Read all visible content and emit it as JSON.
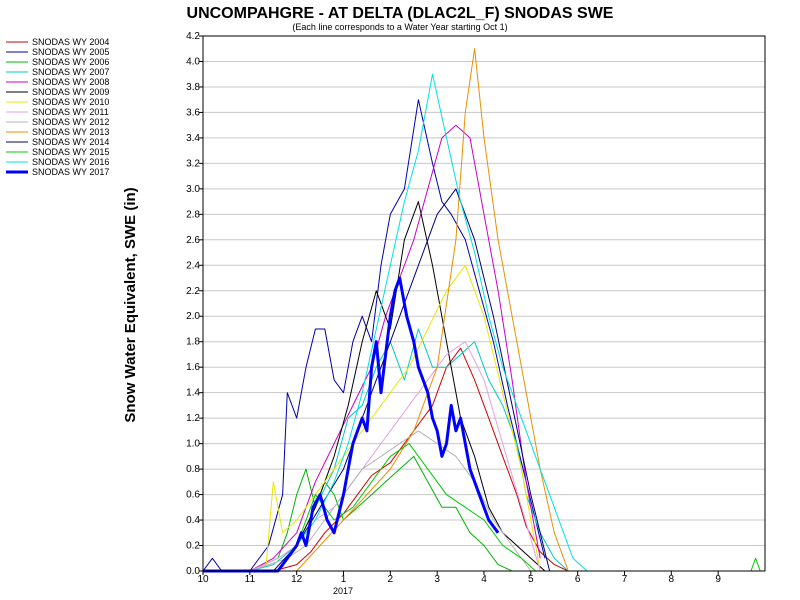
{
  "chart_data": {
    "type": "line",
    "title": "UNCOMPAHGRE - AT DELTA (DLAC2L_F) SNODAS SWE",
    "subtitle": "(Each line corresponds to a Water Year starting Oct 1)",
    "ylabel": "Snow Water Equivalent, SWE (in)",
    "xlabel": "",
    "x_ticks": [
      "10",
      "11",
      "12",
      "1",
      "2",
      "3",
      "4",
      "5",
      "6",
      "7",
      "8",
      "9"
    ],
    "x_year_label": "2017",
    "xlim": [
      0,
      12
    ],
    "ylim": [
      0,
      4.2
    ],
    "y_ticks": [
      0.0,
      0.2,
      0.4,
      0.6,
      0.8,
      1.0,
      1.2,
      1.4,
      1.6,
      1.8,
      2.0,
      2.2,
      2.4,
      2.6,
      2.8,
      3.0,
      3.2,
      3.4,
      3.6,
      3.8,
      4.0,
      4.2
    ],
    "grid": true,
    "legend_position": "left",
    "series": [
      {
        "name": "SNODAS WY 2004",
        "color": "#d00000",
        "width": 1,
        "x": [
          0,
          0.5,
          1,
          1.5,
          2,
          2.3,
          2.6,
          3,
          3.3,
          3.6,
          4,
          4.3,
          4.6,
          4.9,
          5.2,
          5.5,
          5.8,
          6.1,
          6.4,
          6.7,
          6.9,
          7.2,
          7.5,
          7.8
        ],
        "y": [
          0,
          0,
          0,
          0,
          0.05,
          0.15,
          0.3,
          0.45,
          0.6,
          0.75,
          0.85,
          1.0,
          1.15,
          1.3,
          1.6,
          1.75,
          1.5,
          1.2,
          0.9,
          0.6,
          0.35,
          0.15,
          0.05,
          0
        ]
      },
      {
        "name": "SNODAS WY 2005",
        "color": "#0000b4",
        "width": 1,
        "x": [
          0,
          0.2,
          0.4,
          1,
          1.4,
          1.7,
          1.8,
          2,
          2.2,
          2.4,
          2.6,
          2.8,
          3,
          3.2,
          3.4,
          3.6,
          3.8,
          4,
          4.3,
          4.6,
          4.9,
          5.1,
          5.3,
          5.6,
          5.9,
          6.2,
          6.5,
          6.7,
          6.9,
          7.1,
          7.3
        ],
        "y": [
          0,
          0.1,
          0,
          0,
          0.2,
          0.6,
          1.4,
          1.2,
          1.6,
          1.9,
          1.9,
          1.5,
          1.4,
          1.8,
          2.0,
          1.8,
          2.4,
          2.8,
          3.0,
          3.7,
          3.2,
          2.9,
          2.8,
          2.6,
          2.2,
          1.8,
          1.3,
          1.0,
          0.7,
          0.4,
          0.1
        ]
      },
      {
        "name": "SNODAS WY 2006",
        "color": "#00b400",
        "width": 1,
        "x": [
          0,
          1,
          1.6,
          1.8,
          2.0,
          2.2,
          2.4,
          2.6,
          2.8,
          3.0,
          3.3,
          3.6,
          3.9,
          4.2,
          4.5,
          4.8,
          5.1,
          5.4,
          5.7,
          6.0,
          6.3,
          6.6
        ],
        "y": [
          0,
          0,
          0.1,
          0.3,
          0.6,
          0.8,
          0.5,
          0.7,
          0.6,
          0.4,
          0.5,
          0.6,
          0.7,
          0.8,
          0.9,
          0.7,
          0.5,
          0.5,
          0.3,
          0.2,
          0.05,
          0
        ]
      },
      {
        "name": "SNODAS WY 2007",
        "color": "#00c8c8",
        "width": 1,
        "x": [
          0,
          1,
          1.5,
          2,
          2.4,
          2.8,
          3.1,
          3.4,
          3.7,
          4.0,
          4.3,
          4.6,
          4.9,
          5.2,
          5.5,
          5.8,
          6.1,
          6.4,
          6.7,
          6.9,
          7.2,
          7.5,
          7.8
        ],
        "y": [
          0,
          0,
          0.05,
          0.2,
          0.5,
          0.8,
          1.2,
          1.3,
          1.6,
          1.8,
          1.5,
          1.9,
          1.6,
          1.6,
          1.7,
          1.8,
          1.5,
          1.3,
          1.0,
          0.6,
          0.3,
          0.1,
          0
        ]
      },
      {
        "name": "SNODAS WY 2008",
        "color": "#c800c8",
        "width": 1,
        "x": [
          0,
          1,
          1.5,
          2,
          2.4,
          2.8,
          3.2,
          3.6,
          3.9,
          4.2,
          4.5,
          4.8,
          5.1,
          5.4,
          5.7,
          6.0,
          6.3,
          6.6,
          6.9,
          7.2
        ],
        "y": [
          0,
          0,
          0.1,
          0.3,
          0.7,
          1.0,
          1.3,
          1.6,
          2.0,
          2.3,
          2.6,
          3.0,
          3.4,
          3.5,
          3.4,
          2.8,
          2.2,
          1.5,
          0.7,
          0.1
        ]
      },
      {
        "name": "SNODAS WY 2009",
        "color": "#000000",
        "width": 1,
        "x": [
          0,
          1.6,
          2,
          2.4,
          2.8,
          3.1,
          3.4,
          3.7,
          4.0,
          4.3,
          4.6,
          4.9,
          5.2,
          5.5,
          5.8,
          6.1,
          6.4,
          6.7,
          7.0,
          7.3
        ],
        "y": [
          0,
          0,
          0.2,
          0.5,
          0.9,
          1.3,
          1.8,
          2.2,
          1.9,
          2.6,
          2.9,
          2.4,
          1.8,
          1.2,
          0.9,
          0.5,
          0.3,
          0.2,
          0.1,
          0
        ]
      },
      {
        "name": "SNODAS WY 2010",
        "color": "#e8e800",
        "width": 1,
        "x": [
          0,
          1,
          1.35,
          1.5,
          1.7,
          2,
          2.4,
          2.8,
          3.2,
          3.6,
          4.0,
          4.4,
          4.8,
          5.2,
          5.6,
          6.0,
          6.4,
          6.8,
          7.2
        ],
        "y": [
          0,
          0,
          0.05,
          0.7,
          0.3,
          0.4,
          0.6,
          0.8,
          1.0,
          1.2,
          1.4,
          1.6,
          1.9,
          2.2,
          2.4,
          2.0,
          1.4,
          0.8,
          0
        ]
      },
      {
        "name": "SNODAS WY 2011",
        "color": "#e4a0e4",
        "width": 1,
        "x": [
          0,
          1,
          1.6,
          2,
          2.4,
          2.8,
          3.2,
          3.6,
          4.0,
          4.4,
          4.8,
          5.2,
          5.6,
          6.0,
          6.4,
          6.8,
          7.2
        ],
        "y": [
          0,
          0,
          0.1,
          0.2,
          0.4,
          0.5,
          0.7,
          0.9,
          1.1,
          1.3,
          1.5,
          1.7,
          1.8,
          1.5,
          1.0,
          0.5,
          0
        ]
      },
      {
        "name": "SNODAS WY 2012",
        "color": "#b4b4b4",
        "width": 1,
        "x": [
          0,
          1,
          1.8,
          2.2,
          2.6,
          3.0,
          3.4,
          3.8,
          4.2,
          4.6,
          5.0,
          5.4,
          5.8,
          6.2,
          6.6,
          7.0
        ],
        "y": [
          0,
          0,
          0.1,
          0.2,
          0.4,
          0.6,
          0.8,
          0.9,
          1.0,
          1.1,
          1.0,
          0.9,
          0.7,
          0.4,
          0.2,
          0
        ]
      },
      {
        "name": "SNODAS WY 2013",
        "color": "#e89000",
        "width": 1,
        "x": [
          0,
          1,
          2,
          2.5,
          3.0,
          3.5,
          4.0,
          4.5,
          5.0,
          5.4,
          5.6,
          5.8,
          6.0,
          6.3,
          6.6,
          6.9,
          7.2,
          7.5,
          7.8
        ],
        "y": [
          0,
          0,
          0,
          0.2,
          0.4,
          0.6,
          0.8,
          1.1,
          1.6,
          2.6,
          3.6,
          4.1,
          3.4,
          2.6,
          2.0,
          1.4,
          0.8,
          0.3,
          0
        ]
      },
      {
        "name": "SNODAS WY 2014",
        "color": "#000078",
        "width": 1,
        "x": [
          0,
          1.5,
          2,
          2.5,
          3.0,
          3.4,
          3.8,
          4.2,
          4.6,
          5.0,
          5.4,
          5.8,
          6.2,
          6.6,
          7.0,
          7.4
        ],
        "y": [
          0,
          0,
          0.2,
          0.5,
          0.8,
          1.2,
          1.6,
          2.0,
          2.4,
          2.8,
          3.0,
          2.6,
          2.0,
          1.3,
          0.6,
          0
        ]
      },
      {
        "name": "SNODAS WY 2015",
        "color": "#00c800",
        "width": 1,
        "x": [
          0,
          1.6,
          2,
          2.4,
          2.8,
          3.2,
          3.6,
          4.0,
          4.4,
          4.8,
          5.2,
          5.6,
          6.0,
          6.4,
          6.8,
          7.1,
          11.7,
          11.8,
          11.9
        ],
        "y": [
          0,
          0,
          0.2,
          0.6,
          0.4,
          0.5,
          0.7,
          0.9,
          1.0,
          0.8,
          0.6,
          0.5,
          0.4,
          0.2,
          0.1,
          0,
          0,
          0.1,
          0
        ]
      },
      {
        "name": "SNODAS WY 2016",
        "color": "#00e0e0",
        "width": 1,
        "x": [
          0,
          1.6,
          2,
          2.4,
          2.8,
          3.1,
          3.4,
          3.7,
          4.0,
          4.3,
          4.6,
          4.9,
          5.2,
          5.5,
          5.8,
          6.1,
          6.4,
          6.7,
          7.0,
          7.3,
          7.6,
          7.9,
          8.2
        ],
        "y": [
          0,
          0,
          0.2,
          0.4,
          0.7,
          1.0,
          1.4,
          1.9,
          2.4,
          2.9,
          3.3,
          3.9,
          3.4,
          2.9,
          2.5,
          2.0,
          1.6,
          1.3,
          1.0,
          0.7,
          0.4,
          0.1,
          0
        ]
      },
      {
        "name": "SNODAS WY 2017",
        "color": "#0000ff",
        "width": 3,
        "x": [
          0,
          1.6,
          1.8,
          2.0,
          2.1,
          2.2,
          2.35,
          2.5,
          2.65,
          2.8,
          3.0,
          3.2,
          3.4,
          3.5,
          3.6,
          3.7,
          3.8,
          3.9,
          4.0,
          4.1,
          4.2,
          4.35,
          4.5,
          4.6,
          4.7,
          4.8,
          4.9,
          5.0,
          5.1,
          5.2,
          5.3,
          5.4,
          5.5,
          5.6,
          5.7,
          5.9,
          6.1,
          6.3
        ],
        "y": [
          0,
          0,
          0.1,
          0.2,
          0.3,
          0.2,
          0.5,
          0.6,
          0.4,
          0.3,
          0.6,
          1.0,
          1.2,
          1.1,
          1.6,
          1.8,
          1.4,
          1.7,
          2.0,
          2.2,
          2.3,
          2.0,
          1.8,
          1.6,
          1.5,
          1.4,
          1.2,
          1.1,
          0.9,
          1.0,
          1.3,
          1.1,
          1.2,
          1.0,
          0.8,
          0.6,
          0.4,
          0.3
        ]
      }
    ]
  }
}
